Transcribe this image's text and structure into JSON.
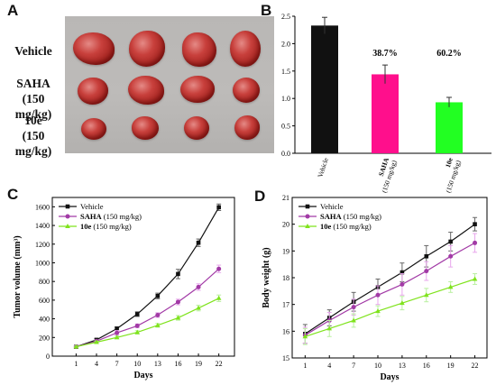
{
  "panels": {
    "A": {
      "letter": "A",
      "group_labels": [
        {
          "line1": "Vehicle",
          "line2": ""
        },
        {
          "line1": "SAHA",
          "line2": "(150 mg/kg)"
        },
        {
          "line1": "10e",
          "line2": "(150 mg/kg)"
        }
      ]
    },
    "B": {
      "letter": "B"
    },
    "C": {
      "letter": "C"
    },
    "D": {
      "letter": "D"
    }
  },
  "colors": {
    "vehicle": "#111111",
    "saha_bar": "#ff0f8c",
    "e10_bar": "#22ff22",
    "saha_line": "#a23aa6",
    "e10_line": "#7fe31c"
  },
  "chart_data": [
    {
      "id": "B",
      "type": "bar",
      "categories": [
        "Vehicle",
        "SAHA (150 mg/kg)",
        "10e (150 mg/kg)"
      ],
      "category_labels": [
        {
          "bold": "",
          "rest": "Vehicle"
        },
        {
          "bold": "SAHA",
          "rest": "(150 mg/kg)"
        },
        {
          "bold": "10e",
          "rest": "(150 mg/kg)"
        }
      ],
      "values": [
        2.33,
        1.44,
        0.93
      ],
      "errors": [
        0.15,
        0.17,
        0.09
      ],
      "annotations": [
        "",
        "38.7%",
        "60.2%"
      ],
      "ylim": [
        0,
        2.5
      ],
      "yticks": [
        "0.0",
        "0.5",
        "1.0",
        "1.5",
        "2.0",
        "2.5"
      ],
      "xlabel": "",
      "ylabel": ""
    },
    {
      "id": "C",
      "type": "line",
      "x": [
        1,
        4,
        7,
        10,
        13,
        16,
        19,
        22
      ],
      "xticks": [
        "1",
        "4",
        "7",
        "10",
        "13",
        "16",
        "19",
        "22"
      ],
      "xlabel": "Days",
      "ylabel": "Tumor volume (mm³)",
      "ylim": [
        0,
        1700
      ],
      "yticks": [
        "0",
        "200",
        "400",
        "600",
        "800",
        "1000",
        "1200",
        "1400",
        "1600"
      ],
      "legend": "top-left",
      "series": [
        {
          "name": "Vehicle",
          "name_bold": "",
          "name_rest": "Vehicle",
          "marker": "square",
          "values": [
            100,
            175,
            295,
            450,
            645,
            880,
            1215,
            1595
          ],
          "errors": [
            10,
            12,
            18,
            25,
            30,
            50,
            40,
            35
          ]
        },
        {
          "name": "SAHA (150 mg/kg)",
          "name_bold": "SAHA",
          "name_rest": " (150 mg/kg)",
          "marker": "circle",
          "values": [
            100,
            160,
            250,
            325,
            440,
            580,
            740,
            935
          ],
          "errors": [
            8,
            15,
            25,
            20,
            25,
            30,
            35,
            40
          ]
        },
        {
          "name": "10e (150 mg/kg)",
          "name_bold": "10e",
          "name_rest": " (150 mg/kg)",
          "marker": "triangle",
          "values": [
            100,
            150,
            200,
            255,
            330,
            410,
            515,
            620
          ],
          "errors": [
            8,
            12,
            15,
            18,
            20,
            25,
            30,
            35
          ]
        }
      ]
    },
    {
      "id": "D",
      "type": "line",
      "x": [
        1,
        4,
        7,
        10,
        13,
        16,
        19,
        22
      ],
      "xticks": [
        "1",
        "4",
        "7",
        "10",
        "13",
        "16",
        "19",
        "22"
      ],
      "xlabel": "Days",
      "ylabel": "Body weight (g)",
      "ylim": [
        15,
        21
      ],
      "yticks": [
        "15",
        "16",
        "17",
        "18",
        "19",
        "20",
        "21"
      ],
      "legend": "top-left",
      "series": [
        {
          "name": "Vehicle",
          "name_bold": "",
          "name_rest": "Vehicle",
          "marker": "square",
          "values": [
            15.9,
            16.5,
            17.1,
            17.65,
            18.2,
            18.8,
            19.35,
            20.0
          ],
          "errors": [
            0.35,
            0.3,
            0.35,
            0.3,
            0.35,
            0.4,
            0.35,
            0.25
          ]
        },
        {
          "name": "SAHA (150 mg/kg)",
          "name_bold": "SAHA",
          "name_rest": " (150 mg/kg)",
          "marker": "circle",
          "values": [
            15.85,
            16.4,
            16.9,
            17.35,
            17.75,
            18.25,
            18.8,
            19.3
          ],
          "errors": [
            0.3,
            0.3,
            0.3,
            0.35,
            0.4,
            0.35,
            0.4,
            0.35
          ]
        },
        {
          "name": "10e (150 mg/kg)",
          "name_bold": "10e",
          "name_rest": " (150 mg/kg)",
          "marker": "triangle",
          "values": [
            15.8,
            16.1,
            16.4,
            16.75,
            17.05,
            17.35,
            17.65,
            17.95
          ],
          "errors": [
            0.3,
            0.3,
            0.25,
            0.2,
            0.25,
            0.25,
            0.2,
            0.2
          ]
        }
      ]
    }
  ]
}
